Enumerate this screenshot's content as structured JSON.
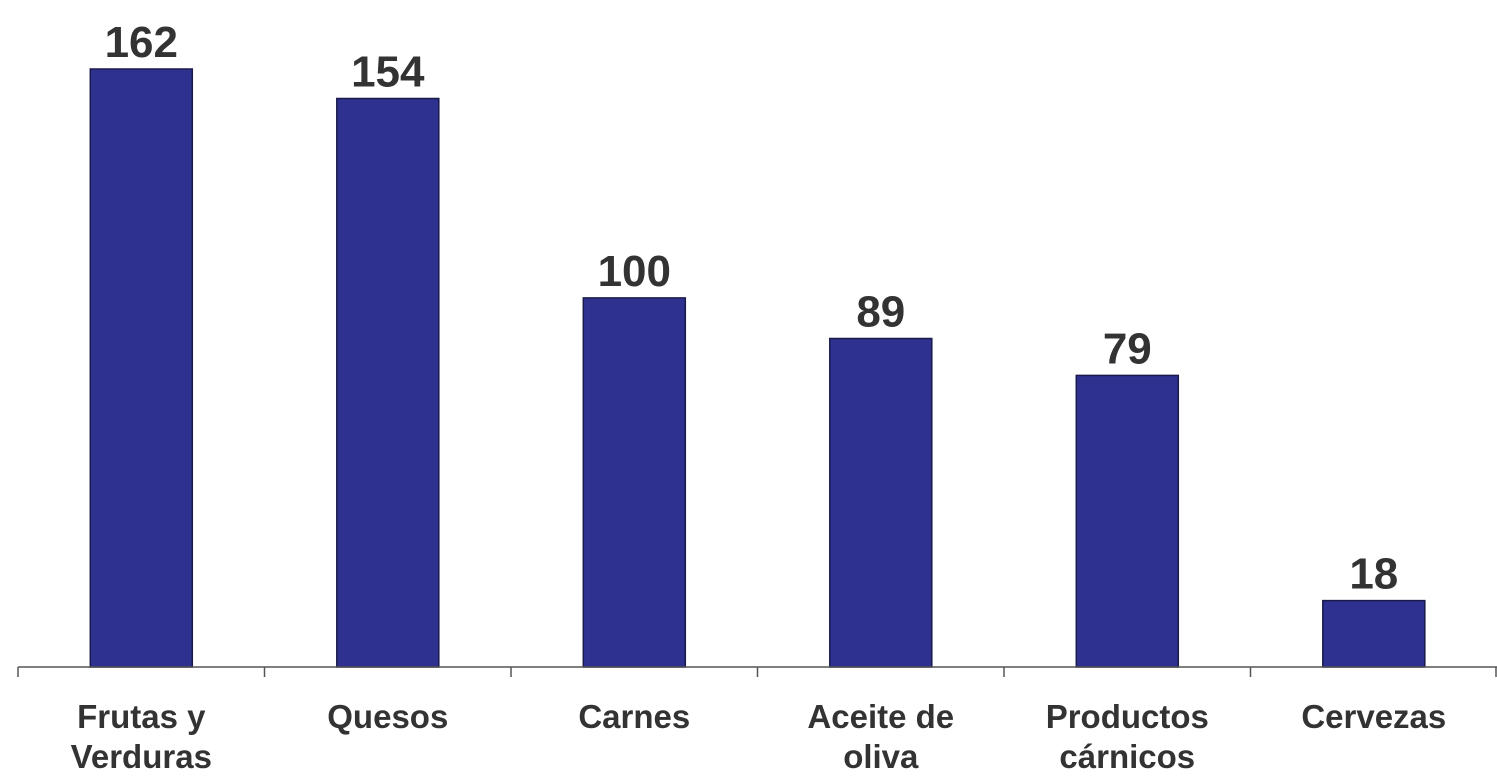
{
  "colors": {
    "bar": "#2e3190",
    "bar_stroke": "#1a1a4a",
    "label_text": "#333333",
    "axis": "#555555"
  },
  "chart_data": {
    "type": "bar",
    "categories": [
      [
        "Frutas y",
        "Verduras"
      ],
      [
        "Quesos"
      ],
      [
        "Carnes"
      ],
      [
        "Aceite de",
        "oliva"
      ],
      [
        "Productos",
        "cárnicos"
      ],
      [
        "Cervezas"
      ]
    ],
    "values": [
      162,
      154,
      100,
      89,
      79,
      18
    ],
    "data_labels": [
      "162",
      "154",
      "100",
      "89",
      "79",
      "18"
    ],
    "title": "",
    "xlabel": "",
    "ylabel": "",
    "ylim": [
      0,
      162
    ],
    "grid": false,
    "legend": "none"
  }
}
